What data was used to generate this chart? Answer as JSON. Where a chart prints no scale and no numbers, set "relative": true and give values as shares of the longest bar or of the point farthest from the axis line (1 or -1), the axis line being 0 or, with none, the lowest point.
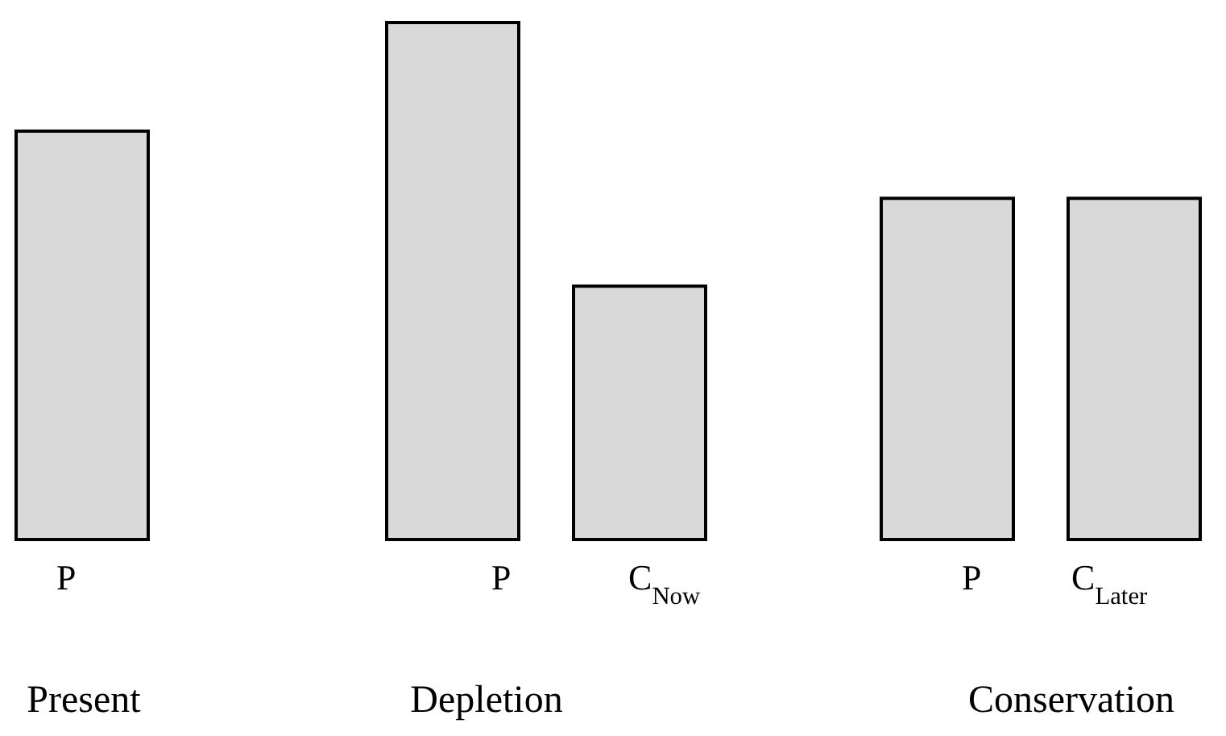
{
  "chart_data": {
    "type": "bar",
    "relative": true,
    "categories": [
      "P",
      "P",
      "C$_{Now}$",
      "P",
      "C$_{Later}$"
    ],
    "values": [
      0.79,
      1,
      0.49,
      0.66,
      0.66
    ],
    "color": "#d9d9d9",
    "annotations": [
      "Present",
      "Depletion",
      "Conservation"
    ]
  }
}
